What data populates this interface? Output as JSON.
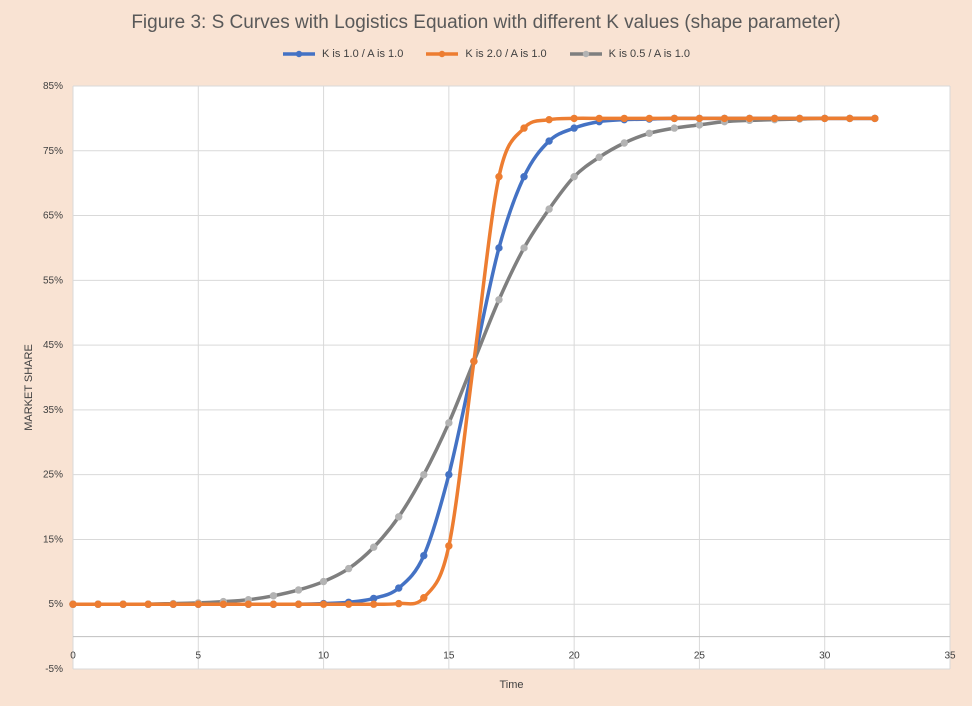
{
  "chart_data": {
    "type": "line",
    "title": "Figure 3: S Curves with Logistics Equation with different K values (shape parameter)",
    "xlabel": "Time",
    "ylabel": "MARKET SHARE",
    "xlim": [
      0,
      35
    ],
    "ylim": [
      -0.05,
      0.85
    ],
    "x_ticks": [
      "0",
      "5",
      "10",
      "15",
      "20",
      "25",
      "30",
      "35"
    ],
    "y_ticks": [
      "-5%",
      "5%",
      "15%",
      "25%",
      "35%",
      "45%",
      "55%",
      "65%",
      "75%",
      "85%"
    ],
    "grid": true,
    "legend_position": "top",
    "x": [
      0,
      1,
      2,
      3,
      4,
      5,
      6,
      7,
      8,
      9,
      10,
      11,
      12,
      13,
      14,
      15,
      16,
      17,
      18,
      19,
      20,
      21,
      22,
      23,
      24,
      25,
      26,
      27,
      28,
      29,
      30,
      31,
      32
    ],
    "series": [
      {
        "name": "K is 1.0 /  A is 1.0",
        "color": "#4472c4",
        "values": [
          0.05,
          0.05,
          0.05,
          0.05,
          0.05,
          0.05,
          0.05,
          0.05,
          0.05,
          0.05,
          0.051,
          0.053,
          0.059,
          0.075,
          0.125,
          0.25,
          0.425,
          0.6,
          0.71,
          0.765,
          0.785,
          0.795,
          0.798,
          0.799,
          0.8,
          0.8,
          0.8,
          0.8,
          0.8,
          0.8,
          0.8,
          0.8,
          0.8
        ]
      },
      {
        "name": "K is 2.0 /  A is 1.0",
        "color": "#ed7d31",
        "values": [
          0.05,
          0.05,
          0.05,
          0.05,
          0.05,
          0.05,
          0.05,
          0.05,
          0.05,
          0.05,
          0.05,
          0.05,
          0.05,
          0.051,
          0.06,
          0.14,
          0.425,
          0.71,
          0.785,
          0.798,
          0.8,
          0.8,
          0.8,
          0.8,
          0.8,
          0.8,
          0.8,
          0.8,
          0.8,
          0.8,
          0.8,
          0.8,
          0.8
        ]
      },
      {
        "name": "K is 0.5 /  A is 1.0",
        "color": "#7f7f7f",
        "marker_color": "#b3b3b3",
        "values": [
          0.05,
          0.05,
          0.05,
          0.05,
          0.051,
          0.052,
          0.054,
          0.057,
          0.063,
          0.072,
          0.085,
          0.105,
          0.138,
          0.185,
          0.25,
          0.33,
          0.425,
          0.52,
          0.6,
          0.66,
          0.71,
          0.74,
          0.762,
          0.777,
          0.785,
          0.79,
          0.795,
          0.797,
          0.798,
          0.799,
          0.8,
          0.8,
          0.8
        ]
      }
    ]
  }
}
